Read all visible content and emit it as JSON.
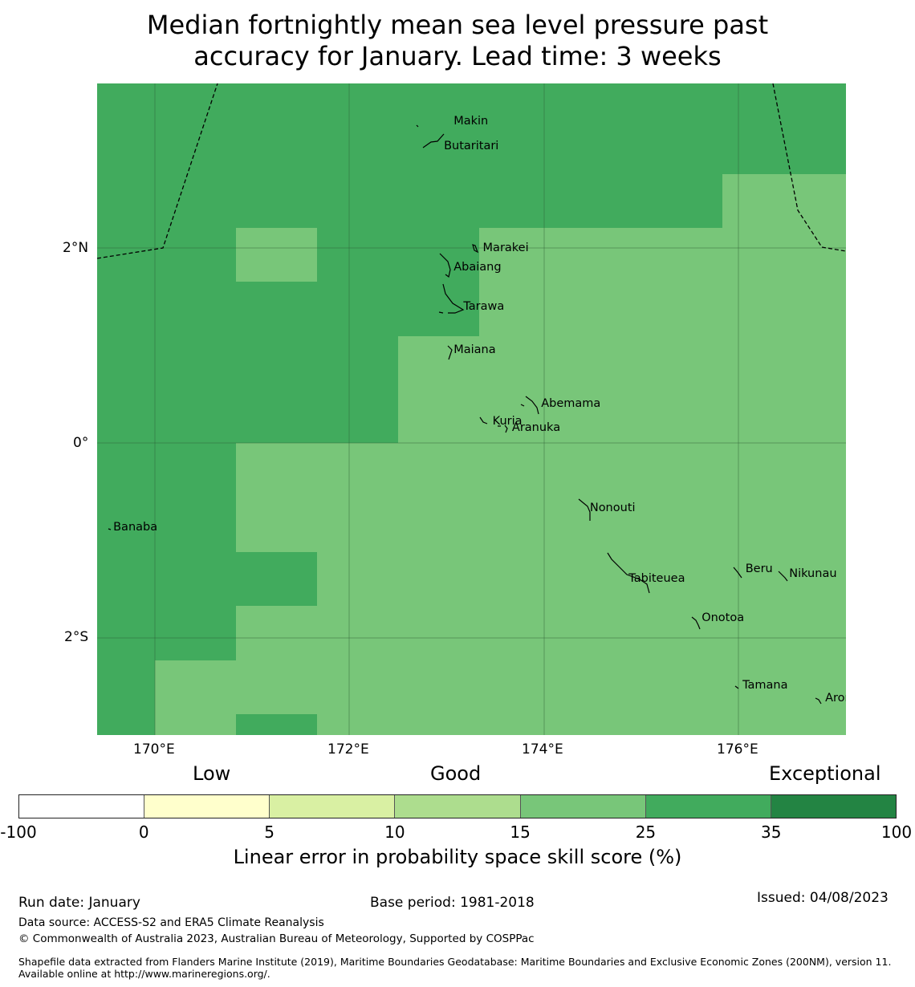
{
  "title": {
    "line1": "Median fortnightly mean sea level pressure past",
    "line2": "accuracy for January. Lead time: 3 weeks"
  },
  "map": {
    "lon_range": [
      169.4,
      177.1
    ],
    "lat_range": [
      -3.0,
      3.7
    ],
    "lon_ticks": [
      {
        "value": 170,
        "label": "170°E"
      },
      {
        "value": 172,
        "label": "172°E"
      },
      {
        "value": 174,
        "label": "174°E"
      },
      {
        "value": 176,
        "label": "176°E"
      }
    ],
    "lat_ticks": [
      {
        "value": 2,
        "label": "2°N"
      },
      {
        "value": 0,
        "label": "0°"
      },
      {
        "value": -2,
        "label": "2°S"
      }
    ],
    "colors": {
      "band_25_35": "#41ab5d",
      "band_15_25": "#78c679"
    },
    "places": [
      {
        "name": "Makin",
        "lon": 173.0,
        "lat": 3.3
      },
      {
        "name": "Butaritari",
        "lon": 172.9,
        "lat": 3.05
      },
      {
        "name": "Marakei",
        "lon": 173.3,
        "lat": 2.0
      },
      {
        "name": "Abaiang",
        "lon": 173.0,
        "lat": 1.8
      },
      {
        "name": "Tarawa",
        "lon": 173.1,
        "lat": 1.4
      },
      {
        "name": "Maiana",
        "lon": 173.0,
        "lat": 0.95
      },
      {
        "name": "Abemama",
        "lon": 173.9,
        "lat": 0.4
      },
      {
        "name": "Kuria",
        "lon": 173.4,
        "lat": 0.22
      },
      {
        "name": "Aranuka",
        "lon": 173.6,
        "lat": 0.15
      },
      {
        "name": "Nonouti",
        "lon": 174.4,
        "lat": -0.67
      },
      {
        "name": "Banaba",
        "lon": 169.5,
        "lat": -0.87
      },
      {
        "name": "Beru",
        "lon": 176.0,
        "lat": -1.3
      },
      {
        "name": "Tabiteuea",
        "lon": 174.8,
        "lat": -1.4
      },
      {
        "name": "Nikunau",
        "lon": 176.45,
        "lat": -1.35
      },
      {
        "name": "Onotoa",
        "lon": 175.55,
        "lat": -1.8
      },
      {
        "name": "Tamana",
        "lon": 175.97,
        "lat": -2.5
      },
      {
        "name": "Arorae",
        "lon": 176.82,
        "lat": -2.63
      }
    ]
  },
  "colorbar": {
    "categories": [
      "Low",
      "Good",
      "Exceptional"
    ],
    "ticks": [
      "-100",
      "0",
      "5",
      "10",
      "15",
      "25",
      "35",
      "100"
    ],
    "colors": [
      "#ffffff",
      "#ffffcc",
      "#d9f0a3",
      "#addd8e",
      "#78c679",
      "#41ab5d",
      "#238443"
    ],
    "label": "Linear error in probability space skill score (%)"
  },
  "footer": {
    "run_date": "Run date: January",
    "base_period": "Base period: 1981-2018",
    "issued": "Issued: 04/08/2023",
    "data_source": "Data source: ACCESS-S2 and ERA5 Climate Reanalysis",
    "copyright": "© Commonwealth of Australia 2023, Australian Bureau of Meteorology, Supported by COSPPac",
    "shapefile": "Shapefile data extracted from Flanders Marine Institute (2019), Maritime Boundaries Geodatabase: Maritime Boundaries and Exclusive Economic Zones (200NM), version 11. Available online at http://www.marineregions.org/."
  }
}
